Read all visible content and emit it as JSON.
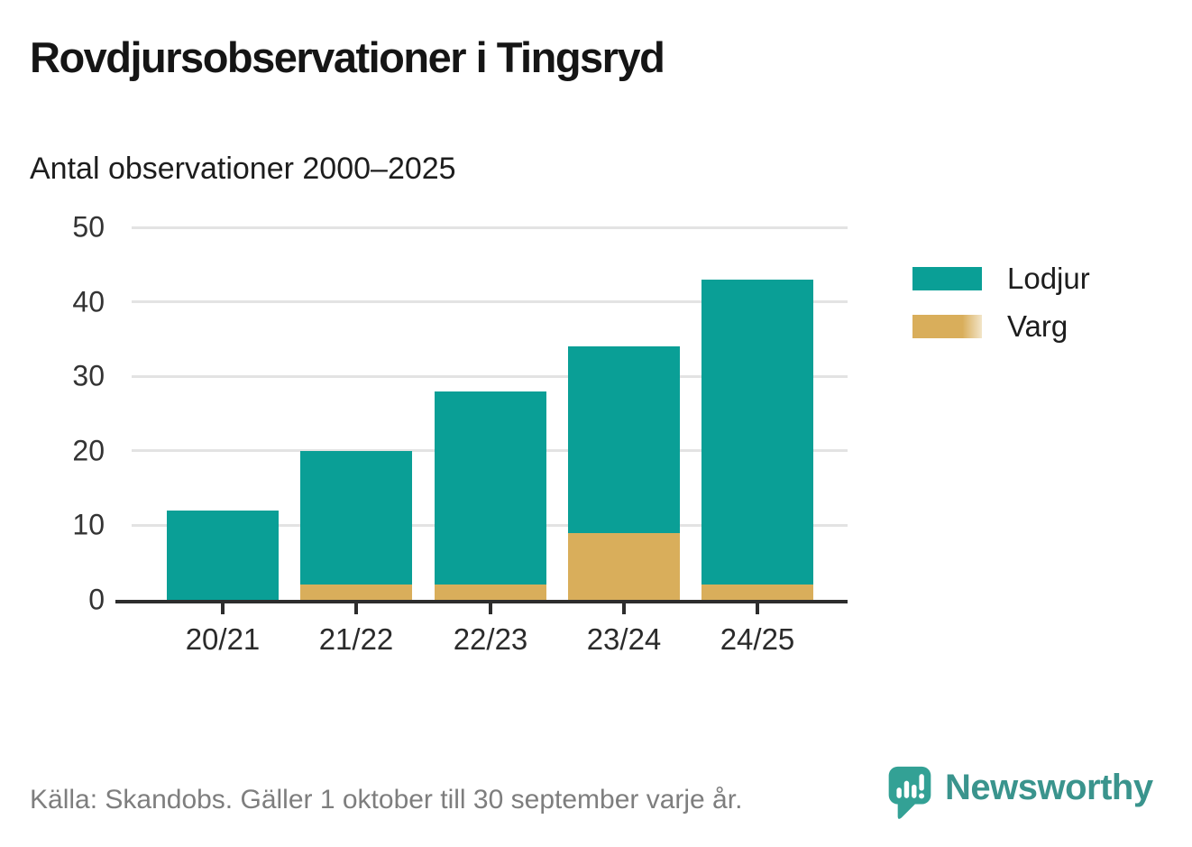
{
  "header": {
    "title": "Rovdjursobservationer i Tingsryd",
    "subtitle": "Antal observationer 2000–2025"
  },
  "chart_data": {
    "type": "bar",
    "stacked": true,
    "title": "Rovdjursobservationer i Tingsryd",
    "subtitle": "Antal observationer 2000–2025",
    "categories": [
      "20/21",
      "21/22",
      "22/23",
      "23/24",
      "24/25"
    ],
    "series": [
      {
        "name": "Lodjur",
        "color": "#0a9f96",
        "values": [
          12,
          18,
          26,
          25,
          41
        ]
      },
      {
        "name": "Varg",
        "color": "#d9ae5b",
        "values": [
          0,
          2,
          2,
          9,
          2
        ]
      }
    ],
    "stack_order_bottom_to_top": [
      "Varg",
      "Lodjur"
    ],
    "stack_totals": [
      12,
      20,
      28,
      34,
      43
    ],
    "ylim": [
      0,
      50
    ],
    "y_ticks": [
      0,
      10,
      20,
      30,
      40,
      50
    ],
    "xlabel": "",
    "ylabel": "",
    "grid": "horizontal",
    "legend_position": "right"
  },
  "legend": {
    "items": [
      {
        "label": "Lodjur",
        "color": "#0a9f96",
        "fade_right": false
      },
      {
        "label": "Varg",
        "color": "#d9ae5b",
        "fade_right": true
      }
    ]
  },
  "footer": {
    "source_text": "Källa: Skandobs. Gäller 1 oktober till 30 september varje år.",
    "brand_name": "Newsworthy",
    "brand_color": "#3a948d"
  },
  "colors": {
    "bar_teal": "#0a9f96",
    "bar_gold": "#d9ae5b",
    "axis": "#2d2d2d",
    "gridline": "#e3e3e3",
    "tick_text": "#333333",
    "title_text": "#151515",
    "source_text": "#7e7e7e",
    "logo_icon": "#33a195"
  }
}
